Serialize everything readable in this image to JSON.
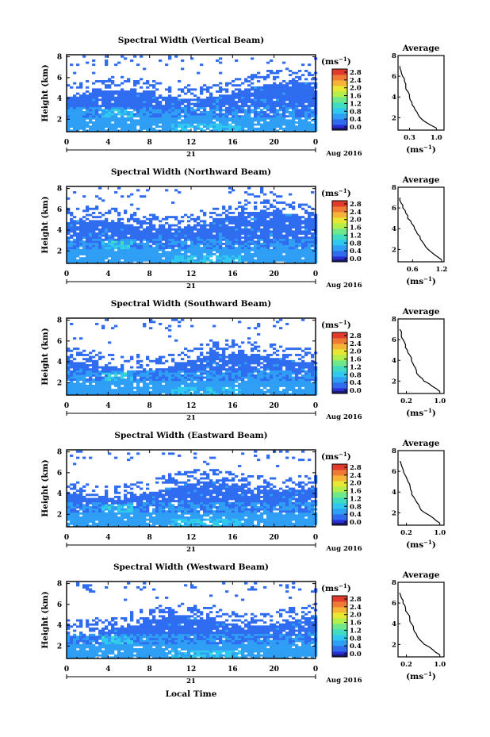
{
  "figure": {
    "xlabel": "Local Time",
    "day_label": "21",
    "month_label": "Aug 2016",
    "colorbar_unit": "(ms",
    "colorbar_unit_exp": "−1",
    "avg_title": "Average",
    "avg_unit": "(ms",
    "avg_unit_exp": "−1",
    "ylabel": "Height (km)"
  },
  "colorbar_ticks": [
    "2.8",
    "2.4",
    "2.0",
    "1.6",
    "1.2",
    "0.8",
    "0.4",
    "0.0"
  ],
  "colorscale": [
    "#1a1a6e",
    "#2b2fd6",
    "#2f6cf0",
    "#2f9ef5",
    "#2fc9ef",
    "#3fdcc0",
    "#6ee88a",
    "#b4ee4a",
    "#e8e832",
    "#f5b435",
    "#f07a35",
    "#e23b2e"
  ],
  "chart_data": [
    {
      "type": "heatmap",
      "title": "Spectral Width (Vertical Beam)",
      "xlabel": "Local Time",
      "ylabel": "Height (km)",
      "x_ticks": [
        "0",
        "4",
        "8",
        "12",
        "16",
        "20",
        "0"
      ],
      "y_ticks": [
        "2",
        "4",
        "6",
        "8"
      ],
      "xlim": [
        0,
        24
      ],
      "ylim": [
        0.8,
        8.2
      ],
      "colorbar_range": [
        0.0,
        2.8
      ],
      "avg_profile": {
        "x_ticks": [
          "0.3",
          "1.0"
        ],
        "xlim": [
          0.0,
          1.2
        ],
        "heights": [
          1.0,
          1.5,
          2.0,
          2.5,
          3.0,
          3.5,
          4.0,
          4.5,
          5.0,
          5.5,
          6.0,
          6.5,
          7.0
        ],
        "values": [
          1.0,
          0.75,
          0.58,
          0.5,
          0.42,
          0.36,
          0.3,
          0.26,
          0.2,
          0.17,
          0.12,
          0.08,
          0.05
        ]
      }
    },
    {
      "type": "heatmap",
      "title": "Spectral Width (Northward Beam)",
      "xlabel": "Local Time",
      "ylabel": "Height (km)",
      "x_ticks": [
        "0",
        "4",
        "8",
        "12",
        "16",
        "20",
        "0"
      ],
      "y_ticks": [
        "2",
        "4",
        "6",
        "8"
      ],
      "xlim": [
        0,
        24
      ],
      "ylim": [
        0.8,
        8.2
      ],
      "colorbar_range": [
        0.0,
        2.8
      ],
      "avg_profile": {
        "x_ticks": [
          "0.6",
          "1.2"
        ],
        "xlim": [
          0.3,
          1.25
        ],
        "heights": [
          1.0,
          1.5,
          2.0,
          2.5,
          3.0,
          3.5,
          4.0,
          4.5,
          5.0,
          5.5,
          6.0,
          6.5,
          7.0
        ],
        "values": [
          1.2,
          1.05,
          0.92,
          0.84,
          0.76,
          0.7,
          0.64,
          0.58,
          0.5,
          0.46,
          0.4,
          0.36,
          0.34
        ]
      }
    },
    {
      "type": "heatmap",
      "title": "Spectral Width (Southward Beam)",
      "xlabel": "Local Time",
      "ylabel": "Height (km)",
      "x_ticks": [
        "0",
        "4",
        "8",
        "12",
        "16",
        "20",
        "0"
      ],
      "y_ticks": [
        "2",
        "4",
        "6",
        "8"
      ],
      "xlim": [
        0,
        24
      ],
      "ylim": [
        0.8,
        8.2
      ],
      "colorbar_range": [
        0.0,
        2.8
      ],
      "avg_profile": {
        "x_ticks": [
          "0.2",
          "1.0"
        ],
        "xlim": [
          0.0,
          1.1
        ],
        "heights": [
          1.0,
          1.5,
          2.0,
          2.5,
          3.0,
          3.5,
          4.0,
          4.5,
          5.0,
          5.5,
          6.0,
          6.5,
          7.0
        ],
        "values": [
          1.0,
          0.82,
          0.62,
          0.5,
          0.44,
          0.38,
          0.32,
          0.28,
          0.22,
          0.18,
          0.12,
          0.08,
          0.04
        ]
      }
    },
    {
      "type": "heatmap",
      "title": "Spectral Width (Eastward Beam)",
      "xlabel": "Local Time",
      "ylabel": "Height (km)",
      "x_ticks": [
        "0",
        "4",
        "8",
        "12",
        "16",
        "20",
        "0"
      ],
      "y_ticks": [
        "2",
        "4",
        "6",
        "8"
      ],
      "xlim": [
        0,
        24
      ],
      "ylim": [
        0.8,
        8.2
      ],
      "colorbar_range": [
        0.0,
        2.8
      ],
      "avg_profile": {
        "x_ticks": [
          "0.2",
          "1.0"
        ],
        "xlim": [
          0.0,
          1.1
        ],
        "heights": [
          1.0,
          1.5,
          2.0,
          2.5,
          3.0,
          3.5,
          4.0,
          4.5,
          5.0,
          5.5,
          6.0,
          6.5,
          7.0
        ],
        "values": [
          1.0,
          0.84,
          0.64,
          0.52,
          0.45,
          0.38,
          0.33,
          0.29,
          0.24,
          0.19,
          0.13,
          0.09,
          0.05
        ]
      }
    },
    {
      "type": "heatmap",
      "title": "Spectral Width (Westward Beam)",
      "xlabel": "Local Time",
      "ylabel": "Height (km)",
      "x_ticks": [
        "0",
        "4",
        "8",
        "12",
        "16",
        "20",
        "0"
      ],
      "y_ticks": [
        "2",
        "4",
        "6",
        "8"
      ],
      "xlim": [
        0,
        24
      ],
      "ylim": [
        0.8,
        8.2
      ],
      "colorbar_range": [
        0.0,
        2.8
      ],
      "avg_profile": {
        "x_ticks": [
          "0.2",
          "1.0"
        ],
        "xlim": [
          0.0,
          1.1
        ],
        "heights": [
          1.0,
          1.5,
          2.0,
          2.5,
          3.0,
          3.5,
          4.0,
          4.5,
          5.0,
          5.5,
          6.0,
          6.5,
          7.0
        ],
        "values": [
          1.0,
          0.83,
          0.63,
          0.51,
          0.44,
          0.37,
          0.32,
          0.28,
          0.23,
          0.18,
          0.12,
          0.08,
          0.04
        ]
      }
    }
  ]
}
